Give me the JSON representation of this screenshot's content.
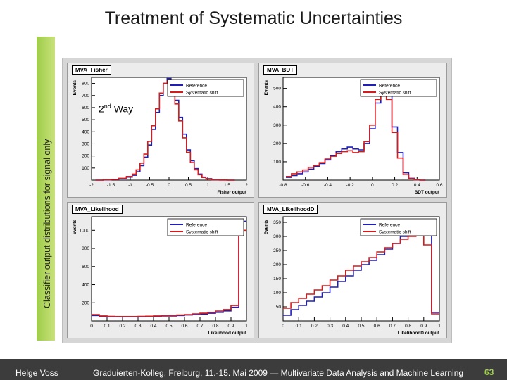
{
  "slide": {
    "title": "Treatment of Systematic Uncertainties",
    "vertical_label": "Classifier output distributions for signal only",
    "annotation_base": "2",
    "annotation_sup": "nd",
    "annotation_rest": " Way"
  },
  "footer": {
    "author": "Helge Voss",
    "event": "Graduierten-Kolleg, Freiburg, 11.-15. Mai 2009 — Multivariate Data Analysis and Machine Learning",
    "page": "63"
  },
  "colors": {
    "reference": "#1f1fb8",
    "shift": "#d41c1c",
    "accent": "#9fcc4a"
  },
  "chart_data": [
    {
      "type": "line",
      "title": "MVA_Fisher",
      "xlabel": "Fisher output",
      "ylabel": "Events",
      "xlim": [
        -2,
        2
      ],
      "ylim": [
        0,
        850
      ],
      "xticks": [
        -2,
        -1.5,
        -1,
        -0.5,
        0,
        0.5,
        1,
        1.5,
        2
      ],
      "xtick_labels": [
        "-2",
        "-1.5",
        "-1",
        "-0.5",
        "0",
        "0.5",
        "1",
        "1.5",
        "2"
      ],
      "yticks": [
        100,
        200,
        300,
        400,
        500,
        600,
        700,
        800
      ],
      "legend": [
        "Reference",
        "Systematic shift"
      ],
      "x": [
        -1.8,
        -1.6,
        -1.4,
        -1.2,
        -1.0,
        -0.9,
        -0.8,
        -0.7,
        -0.6,
        -0.5,
        -0.4,
        -0.3,
        -0.2,
        -0.1,
        0.0,
        0.1,
        0.2,
        0.3,
        0.4,
        0.5,
        0.6,
        0.7,
        0.8,
        0.9,
        1.0,
        1.2,
        1.4,
        1.6
      ],
      "series": [
        {
          "name": "Reference",
          "values": [
            0,
            2,
            5,
            12,
            25,
            40,
            70,
            120,
            190,
            290,
            420,
            560,
            700,
            800,
            840,
            780,
            660,
            520,
            380,
            250,
            160,
            95,
            50,
            25,
            12,
            4,
            1,
            0
          ]
        },
        {
          "name": "Systematic shift",
          "values": [
            0,
            3,
            7,
            15,
            30,
            50,
            85,
            140,
            215,
            320,
            450,
            590,
            720,
            800,
            820,
            760,
            630,
            490,
            350,
            230,
            145,
            85,
            45,
            22,
            10,
            3,
            1,
            0
          ]
        }
      ]
    },
    {
      "type": "line",
      "title": "MVA_BDT",
      "xlabel": "BDT output",
      "ylabel": "Events",
      "xlim": [
        -0.8,
        0.6
      ],
      "ylim": [
        0,
        560
      ],
      "xticks": [
        -0.8,
        -0.6,
        -0.4,
        -0.2,
        0,
        0.2,
        0.4,
        0.6
      ],
      "xtick_labels": [
        "-0.8",
        "-0.6",
        "-0.4",
        "-0.2",
        "0",
        "0.2",
        "0.4",
        "0.6"
      ],
      "yticks": [
        100,
        200,
        300,
        400,
        500
      ],
      "legend": [
        "Reference",
        "Systematic shift"
      ],
      "x": [
        -0.75,
        -0.7,
        -0.65,
        -0.6,
        -0.55,
        -0.5,
        -0.45,
        -0.4,
        -0.35,
        -0.3,
        -0.25,
        -0.2,
        -0.15,
        -0.1,
        -0.05,
        0.0,
        0.05,
        0.1,
        0.15,
        0.2,
        0.25,
        0.3,
        0.35,
        0.4,
        0.45
      ],
      "series": [
        {
          "name": "Reference",
          "values": [
            15,
            25,
            35,
            45,
            60,
            75,
            90,
            110,
            135,
            155,
            170,
            180,
            170,
            165,
            200,
            280,
            420,
            540,
            470,
            290,
            150,
            40,
            10,
            2,
            0
          ]
        },
        {
          "name": "Systematic shift",
          "values": [
            20,
            35,
            45,
            55,
            70,
            80,
            95,
            115,
            130,
            145,
            155,
            160,
            150,
            155,
            210,
            300,
            440,
            520,
            440,
            260,
            120,
            30,
            8,
            2,
            0
          ]
        }
      ]
    },
    {
      "type": "line",
      "title": "MVA_Likelihood",
      "xlabel": "Likelihood output",
      "ylabel": "Events",
      "xlim": [
        0,
        1
      ],
      "ylim": [
        0,
        1150
      ],
      "xticks": [
        0,
        0.1,
        0.2,
        0.3,
        0.4,
        0.5,
        0.6,
        0.7,
        0.8,
        0.9,
        1
      ],
      "xtick_labels": [
        "0",
        "0.1",
        "0.2",
        "0.3",
        "0.4",
        "0.5",
        "0.6",
        "0.7",
        "0.8",
        "0.9",
        "1"
      ],
      "yticks": [
        200,
        400,
        600,
        800,
        1000
      ],
      "legend": [
        "Reference",
        "Systematic shift"
      ],
      "x": [
        0.025,
        0.075,
        0.125,
        0.175,
        0.225,
        0.275,
        0.325,
        0.375,
        0.425,
        0.475,
        0.525,
        0.575,
        0.625,
        0.675,
        0.725,
        0.775,
        0.825,
        0.875,
        0.925,
        0.975
      ],
      "series": [
        {
          "name": "Reference",
          "values": [
            60,
            50,
            45,
            45,
            45,
            45,
            45,
            50,
            50,
            55,
            55,
            60,
            65,
            70,
            75,
            85,
            95,
            110,
            150,
            1100
          ]
        },
        {
          "name": "Systematic shift",
          "values": [
            70,
            55,
            50,
            48,
            48,
            48,
            50,
            52,
            55,
            58,
            60,
            65,
            70,
            78,
            85,
            95,
            108,
            125,
            170,
            1000
          ]
        }
      ]
    },
    {
      "type": "line",
      "title": "MVA_LikelihoodD",
      "xlabel": "LikelihoodD output",
      "ylabel": "Events",
      "xlim": [
        0,
        1
      ],
      "ylim": [
        0,
        370
      ],
      "xticks": [
        0,
        0.1,
        0.2,
        0.3,
        0.4,
        0.5,
        0.6,
        0.7,
        0.8,
        0.9,
        1
      ],
      "xtick_labels": [
        "0",
        "0.1",
        "0.2",
        "0.3",
        "0.4",
        "0.5",
        "0.6",
        "0.7",
        "0.8",
        "0.9",
        "1"
      ],
      "yticks": [
        50,
        100,
        150,
        200,
        250,
        300,
        350
      ],
      "legend": [
        "Reference",
        "Systematic shift"
      ],
      "x": [
        0.025,
        0.075,
        0.125,
        0.175,
        0.225,
        0.275,
        0.325,
        0.375,
        0.425,
        0.475,
        0.525,
        0.575,
        0.625,
        0.675,
        0.725,
        0.775,
        0.825,
        0.875,
        0.925,
        0.975
      ],
      "series": [
        {
          "name": "Reference",
          "values": [
            20,
            40,
            55,
            70,
            85,
            100,
            120,
            140,
            160,
            180,
            200,
            215,
            235,
            255,
            275,
            300,
            330,
            345,
            310,
            30
          ]
        },
        {
          "name": "Systematic shift",
          "values": [
            45,
            65,
            80,
            95,
            110,
            125,
            145,
            160,
            180,
            195,
            210,
            225,
            245,
            260,
            275,
            290,
            300,
            305,
            270,
            25
          ]
        }
      ]
    }
  ]
}
